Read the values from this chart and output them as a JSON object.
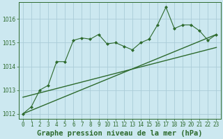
{
  "title": "Graphe pression niveau de la mer (hPa)",
  "background_color": "#cce8f0",
  "grid_color": "#aaccd8",
  "line_color": "#2d6a2d",
  "x_values": [
    0,
    1,
    2,
    3,
    4,
    5,
    6,
    7,
    8,
    9,
    10,
    11,
    12,
    13,
    14,
    15,
    16,
    17,
    18,
    19,
    20,
    21,
    22,
    23
  ],
  "x_labels": [
    "0",
    "1",
    "2",
    "3",
    "4",
    "5",
    "6",
    "7",
    "8",
    "9",
    "10",
    "11",
    "12",
    "13",
    "14",
    "15",
    "16",
    "17",
    "18",
    "19",
    "20",
    "21",
    "22",
    "23"
  ],
  "y_data": [
    1012.0,
    1012.3,
    1013.0,
    1013.2,
    1014.2,
    1014.2,
    1015.1,
    1015.2,
    1015.15,
    1015.35,
    1014.95,
    1015.0,
    1014.85,
    1014.7,
    1015.0,
    1015.15,
    1015.75,
    1016.5,
    1015.6,
    1015.75,
    1015.75,
    1015.5,
    1015.1,
    1015.35
  ],
  "trend_upper_y0": 1012.0,
  "trend_upper_y1": 1015.35,
  "trend_lower_y0": 1012.7,
  "trend_lower_y1": 1014.8,
  "ylim": [
    1011.8,
    1016.7
  ],
  "xlim": [
    -0.5,
    23.5
  ],
  "yticks": [
    1012,
    1013,
    1014,
    1015,
    1016
  ],
  "title_fontsize": 7.5,
  "tick_fontsize": 5.5
}
